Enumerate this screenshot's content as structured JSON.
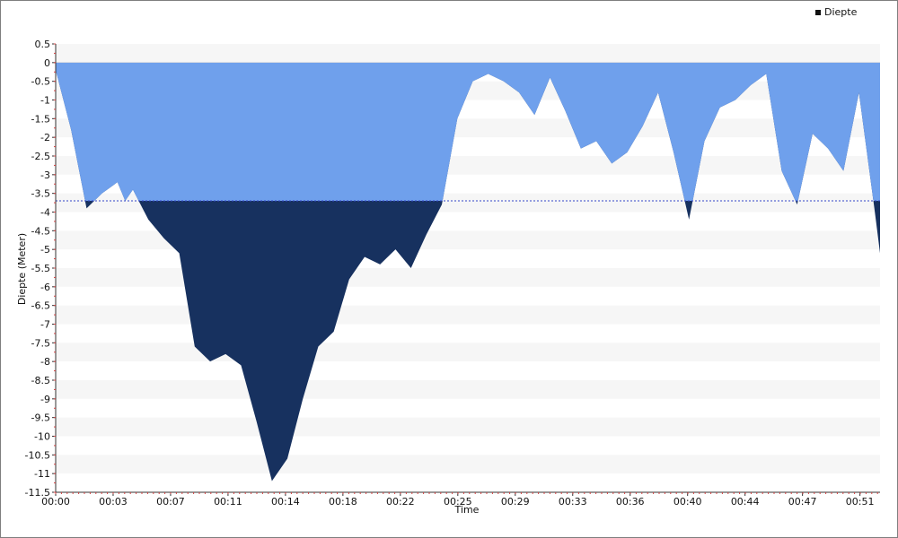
{
  "chart_data": {
    "type": "area",
    "title": "",
    "legend": {
      "label": "Diepte",
      "placement": "top-right"
    },
    "xlabel": "Time",
    "ylabel": "Diepte (Meter)",
    "threshold": -3.7,
    "ylim": [
      -11.5,
      0.5
    ],
    "yticks": [
      "0.5",
      "0",
      "-0.5",
      "-1",
      "-1.5",
      "-2",
      "-2.5",
      "-3",
      "-3.5",
      "-4",
      "-4.5",
      "-5",
      "-5.5",
      "-6",
      "-6.5",
      "-7",
      "-7.5",
      "-8",
      "-8.5",
      "-9",
      "-9.5",
      "-10",
      "-10.5",
      "-11",
      "-11.5"
    ],
    "xtick_labels": [
      "00:00",
      "00:03",
      "00:07",
      "00:11",
      "00:14",
      "00:18",
      "00:22",
      "00:25",
      "00:29",
      "00:33",
      "00:36",
      "00:40",
      "00:44",
      "00:47",
      "00:51"
    ],
    "xmax_seconds": 3202,
    "series": [
      {
        "name": "Diepte",
        "x": [
          0,
          60,
          120,
          180,
          240,
          270,
          300,
          360,
          420,
          480,
          540,
          600,
          660,
          720,
          780,
          840,
          900,
          960,
          1020,
          1080,
          1140,
          1200,
          1260,
          1320,
          1380,
          1440,
          1500,
          1560,
          1620,
          1680,
          1740,
          1800,
          1860,
          1920,
          1980,
          2040,
          2100,
          2160,
          2220,
          2280,
          2340,
          2400,
          2460,
          2520,
          2580,
          2640,
          2700,
          2760,
          2820,
          2880,
          2940,
          3000,
          3060,
          3120,
          3180,
          3202
        ],
        "values": [
          -0.2,
          -1.8,
          -3.9,
          -3.5,
          -3.2,
          -3.7,
          -3.4,
          -4.2,
          -4.7,
          -5.1,
          -7.6,
          -8.0,
          -7.8,
          -8.1,
          -9.6,
          -11.2,
          -10.6,
          -9.0,
          -7.6,
          -7.2,
          -5.8,
          -5.2,
          -5.4,
          -5.0,
          -5.5,
          -4.6,
          -3.8,
          -1.5,
          -0.5,
          -0.3,
          -0.5,
          -0.8,
          -1.4,
          -0.4,
          -1.3,
          -2.3,
          -2.1,
          -2.7,
          -2.4,
          -1.7,
          -0.8,
          -2.4,
          -4.2,
          -2.1,
          -1.2,
          -1.0,
          -0.6,
          -0.3,
          -2.9,
          -3.8,
          -1.9,
          -2.3,
          -2.9,
          -0.8,
          -3.9,
          -5.1
        ]
      }
    ]
  }
}
